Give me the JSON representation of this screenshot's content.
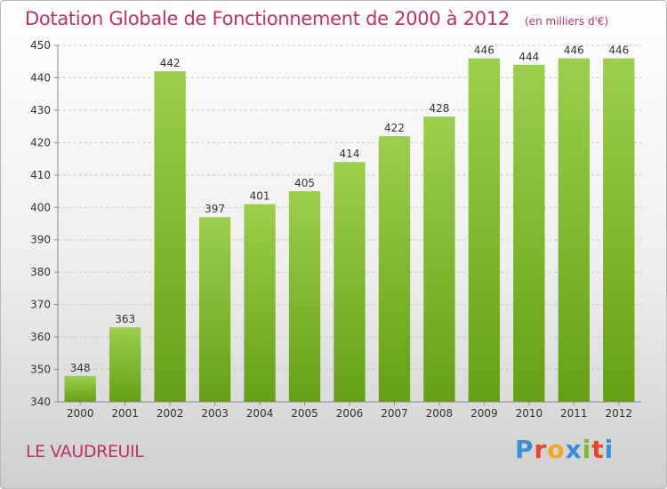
{
  "chart_data": {
    "type": "bar",
    "title": "Dotation Globale de Fonctionnement de 2000 à 2012",
    "subtitle": "(en milliers d'€)",
    "categories": [
      "2000",
      "2001",
      "2002",
      "2003",
      "2004",
      "2005",
      "2006",
      "2007",
      "2008",
      "2009",
      "2010",
      "2011",
      "2012"
    ],
    "values": [
      348,
      363,
      442,
      397,
      401,
      405,
      414,
      422,
      428,
      446,
      444,
      446,
      446
    ],
    "ylim": [
      340,
      450
    ],
    "yticks": [
      340,
      350,
      360,
      370,
      380,
      390,
      400,
      410,
      420,
      430,
      440,
      450
    ],
    "grid": true,
    "bar_color_top": "#9ccf4c",
    "bar_color_bottom": "#65a014",
    "grid_color": "#c8c8c8"
  },
  "commune": "LE VAUDREUIL",
  "logo": {
    "text": "Proxiti",
    "letter_colors": [
      "#3a8fd8",
      "#e8452a",
      "#f2a81d",
      "#3a8fd8",
      "#7bbb2a",
      "#e8452a",
      "#3a8fd8"
    ]
  },
  "colors": {
    "title": "#c0306a"
  }
}
